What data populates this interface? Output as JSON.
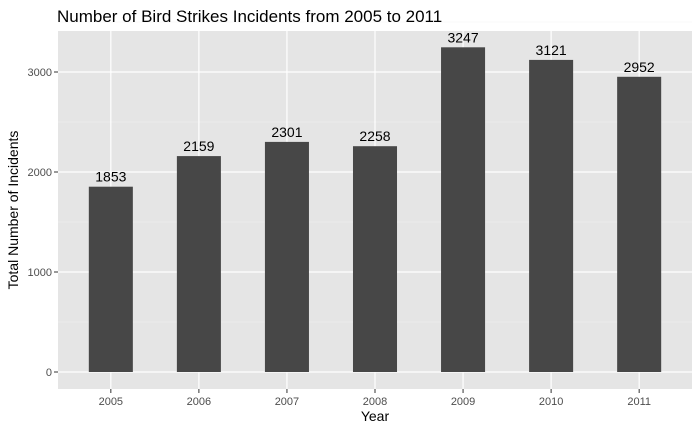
{
  "chart_data": {
    "type": "bar",
    "title": "Number of Bird Strikes Incidents from 2005 to 2011",
    "xlabel": "Year",
    "ylabel": "Total Number of Incidents",
    "categories": [
      "2005",
      "2006",
      "2007",
      "2008",
      "2009",
      "2010",
      "2011"
    ],
    "values": [
      1853,
      2159,
      2301,
      2258,
      3247,
      3121,
      2952
    ],
    "ylim": [
      -170,
      3410
    ],
    "yticks": [
      0,
      1000,
      2000,
      3000
    ],
    "grid": true,
    "legend": "none",
    "colors": {
      "bar": "#474747",
      "panel_background": "#e5e5e5",
      "grid_major": "#ffffff",
      "grid_minor": "#f2f2f2"
    }
  }
}
